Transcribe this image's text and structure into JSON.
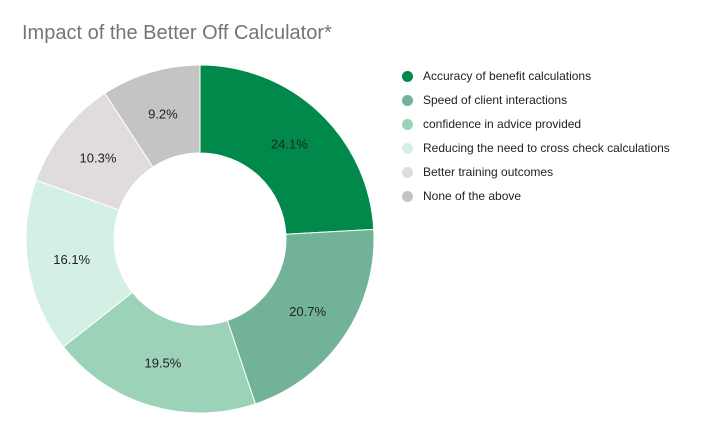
{
  "chart_data": {
    "type": "pie",
    "donut": true,
    "title": "Impact of the Better Off Calculator*",
    "legend_position": "right",
    "slices": [
      {
        "label": "Accuracy of benefit calculations",
        "value": 24.1,
        "display": "24.1%",
        "color": "#00894a"
      },
      {
        "label": "Speed of client interactions",
        "value": 20.7,
        "display": "20.7%",
        "color": "#72b397"
      },
      {
        "label": "confidence in advice provided",
        "value": 19.5,
        "display": "19.5%",
        "color": "#9cd2b8"
      },
      {
        "label": "Reducing the need to cross check calculations",
        "value": 16.1,
        "display": "16.1%",
        "color": "#d4efe3"
      },
      {
        "label": "Better training outcomes",
        "value": 10.3,
        "display": "10.3%",
        "color": "#e0dcdd"
      },
      {
        "label": "None of the above",
        "value": 9.2,
        "display": "9.2%",
        "color": "#c4c4c4"
      }
    ]
  }
}
